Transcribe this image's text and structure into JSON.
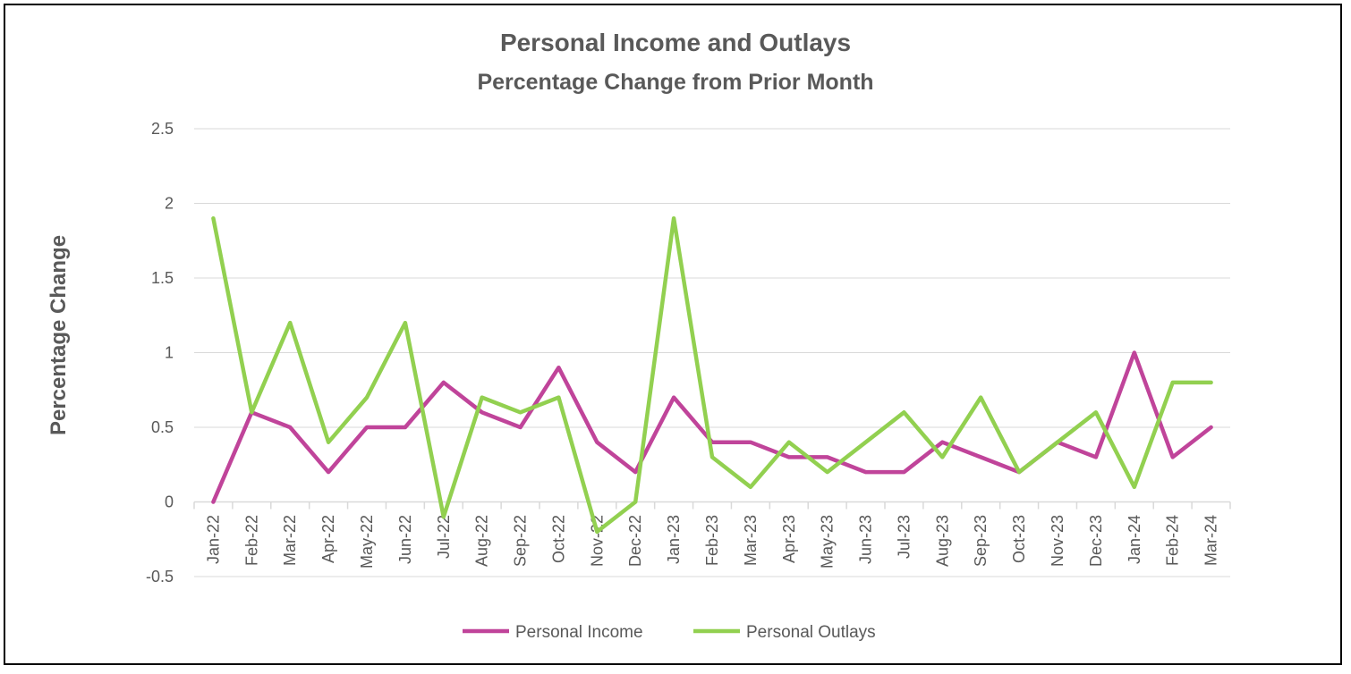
{
  "chart_data": {
    "type": "line",
    "title": "Personal Income and Outlays",
    "subtitle": "Percentage Change from Prior Month",
    "xlabel": "",
    "ylabel": "Percentage Change",
    "ylim": [
      -0.5,
      2.5
    ],
    "yticks": [
      "-0.5",
      "0",
      "0.5",
      "1",
      "1.5",
      "2",
      "2.5"
    ],
    "grid": true,
    "legend_position": "bottom",
    "categories": [
      "Jan-22",
      "Feb-22",
      "Mar-22",
      "Apr-22",
      "May-22",
      "Jun-22",
      "Jul-22",
      "Aug-22",
      "Sep-22",
      "Oct-22",
      "Nov-22",
      "Dec-22",
      "Jan-23",
      "Feb-23",
      "Mar-23",
      "Apr-23",
      "May-23",
      "Jun-23",
      "Jul-23",
      "Aug-23",
      "Sep-23",
      "Oct-23",
      "Nov-23",
      "Dec-23",
      "Jan-24",
      "Feb-24",
      "Mar-24"
    ],
    "series": [
      {
        "name": "Personal Income",
        "color": "#c0449a",
        "values": [
          0,
          0.6,
          0.5,
          0.2,
          0.5,
          0.5,
          0.8,
          0.6,
          0.5,
          0.9,
          0.4,
          0.2,
          0.7,
          0.4,
          0.4,
          0.3,
          0.3,
          0.2,
          0.2,
          0.4,
          0.3,
          0.2,
          0.4,
          0.3,
          1.0,
          0.3,
          0.5
        ]
      },
      {
        "name": "Personal Outlays",
        "color": "#92d050",
        "values": [
          1.9,
          0.6,
          1.2,
          0.4,
          0.7,
          1.2,
          -0.1,
          0.7,
          0.6,
          0.7,
          -0.2,
          0.0,
          1.9,
          0.3,
          0.1,
          0.4,
          0.2,
          0.4,
          0.6,
          0.3,
          0.7,
          0.2,
          0.4,
          0.6,
          0.1,
          0.8,
          0.8
        ]
      }
    ]
  }
}
